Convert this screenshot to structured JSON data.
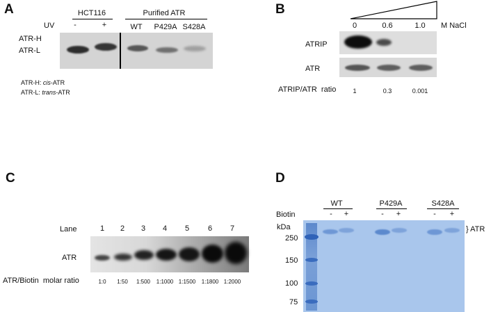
{
  "panel_a": {
    "label": "A",
    "group1": "HCT116",
    "group2": "Purified ATR",
    "uv_label": "UV",
    "uv_minus": "-",
    "uv_plus": "+",
    "lane_wt": "WT",
    "lane_p429a": "P429A",
    "lane_s428a": "S428A",
    "band_h": "ATR-H",
    "band_l": "ATR-L",
    "legend_h_prefix": "ATR-H: ",
    "legend_h_term": "cis",
    "legend_h_suffix": "-ATR",
    "legend_l_prefix": "ATR-L: ",
    "legend_l_term": "trans",
    "legend_l_suffix": "-ATR"
  },
  "panel_b": {
    "label": "B",
    "conc_0": "0",
    "conc_1": "0.6",
    "conc_2": "1.0",
    "unit": "M NaCl",
    "row_atrip": "ATRIP",
    "row_atr": "ATR",
    "ratio_label": "ATRIP/ATR  ratio",
    "ratios": [
      "1",
      "0.3",
      "0.001"
    ]
  },
  "panel_c": {
    "label": "C",
    "lane_label": "Lane",
    "lanes": [
      "1",
      "2",
      "3",
      "4",
      "5",
      "6",
      "7"
    ],
    "row_label": "ATR",
    "ratio_label": "ATR/Biotin  molar ratio",
    "ratios": [
      "1:0",
      "1:50",
      "1:500",
      "1:1000",
      "1:1500",
      "1:1800",
      "1:2000"
    ]
  },
  "panel_d": {
    "label": "D",
    "groups": [
      "WT",
      "P429A",
      "S428A"
    ],
    "biotin_label": "Biotin",
    "minus": "-",
    "plus": "+",
    "kda_label": "kDa",
    "markers": [
      "250",
      "150",
      "100",
      "75"
    ],
    "atr_label": "} ATR"
  }
}
